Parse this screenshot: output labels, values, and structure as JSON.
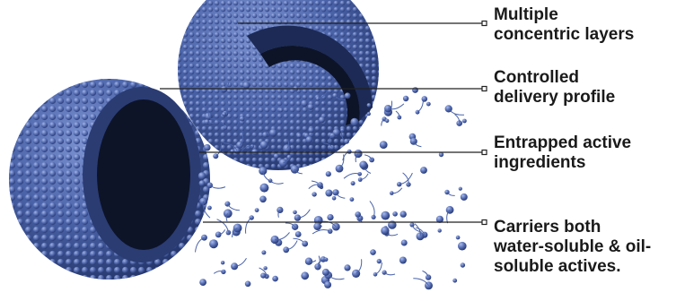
{
  "callouts": [
    {
      "text": "Multiple\nconcentric layers"
    },
    {
      "text": "Controlled\ndelivery profile"
    },
    {
      "text": "Entrapped active\ningredients"
    },
    {
      "text": "Carriers both\nwater-soluble & oil-\nsoluble actives."
    }
  ],
  "colors": {
    "sphere_blue": "#4a63a8",
    "sphere_dark": "#2b3c73",
    "core": "#0d1428",
    "leader_line": "#222222",
    "text": "#1a1a1a"
  }
}
